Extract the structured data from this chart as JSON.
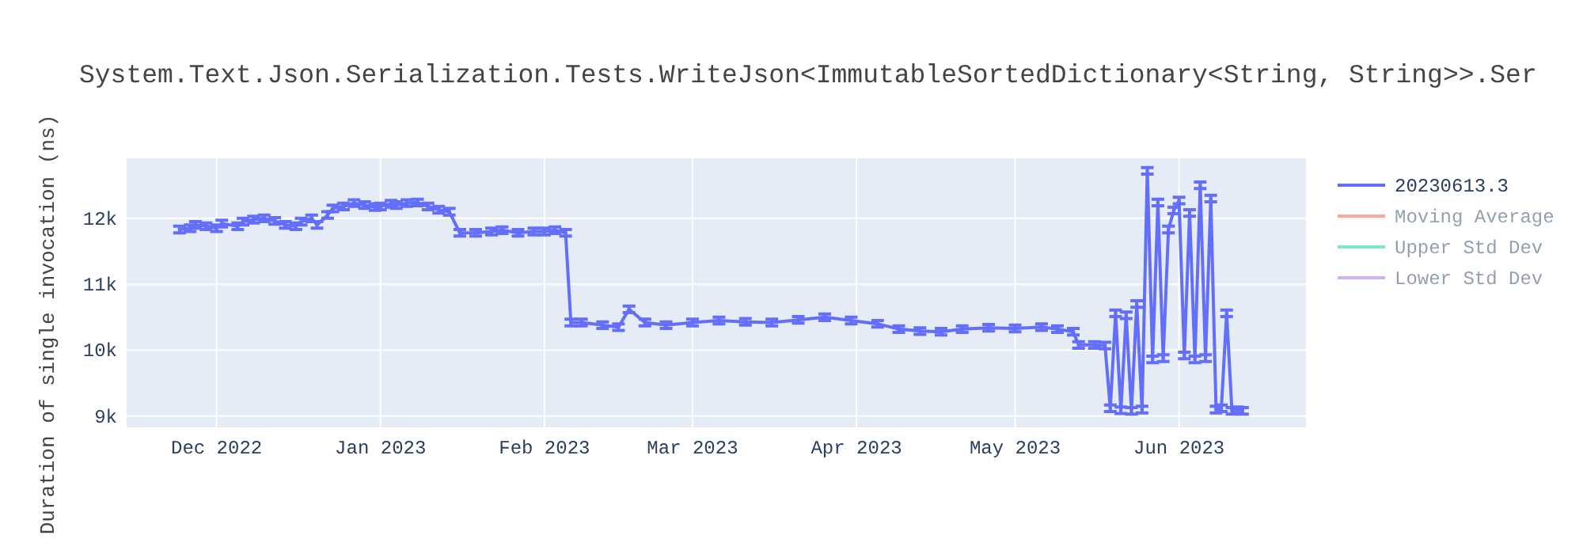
{
  "chart_data": {
    "type": "line",
    "title": "System.Text.Json.Serialization.Tests.WriteJson<ImmutableSortedDictionary<String, String>>.Ser",
    "ylabel": "Duration of single invocation (ns)",
    "xlim": [
      "2022-11-14",
      "2023-06-25"
    ],
    "xticks": [
      {
        "value": "2022-12-01",
        "label": "Dec 2022"
      },
      {
        "value": "2023-01-01",
        "label": "Jan 2023"
      },
      {
        "value": "2023-02-01",
        "label": "Feb 2023"
      },
      {
        "value": "2023-03-01",
        "label": "Mar 2023"
      },
      {
        "value": "2023-04-01",
        "label": "Apr 2023"
      },
      {
        "value": "2023-05-01",
        "label": "May 2023"
      },
      {
        "value": "2023-06-01",
        "label": "Jun 2023"
      }
    ],
    "ylim": [
      8830,
      12910
    ],
    "yticks": [
      {
        "value": 9000,
        "label": "9k"
      },
      {
        "value": 10000,
        "label": "10k"
      },
      {
        "value": 11000,
        "label": "11k"
      },
      {
        "value": 12000,
        "label": "12k"
      }
    ],
    "grid": true,
    "legend": "right",
    "series": [
      {
        "name": "20230613.3",
        "color": "#636efa",
        "x": [
          "2022-11-24",
          "2022-11-26",
          "2022-11-27",
          "2022-11-29",
          "2022-12-01",
          "2022-12-02",
          "2022-12-05",
          "2022-12-06",
          "2022-12-08",
          "2022-12-10",
          "2022-12-12",
          "2022-12-14",
          "2022-12-16",
          "2022-12-17",
          "2022-12-19",
          "2022-12-20",
          "2022-12-22",
          "2022-12-23",
          "2022-12-25",
          "2022-12-27",
          "2022-12-29",
          "2022-12-31",
          "2023-01-01",
          "2023-01-03",
          "2023-01-04",
          "2023-01-06",
          "2023-01-08",
          "2023-01-10",
          "2023-01-12",
          "2023-01-14",
          "2023-01-16",
          "2023-01-19",
          "2023-01-22",
          "2023-01-24",
          "2023-01-27",
          "2023-01-30",
          "2023-02-01",
          "2023-02-03",
          "2023-02-05",
          "2023-02-06",
          "2023-02-08",
          "2023-02-12",
          "2023-02-15",
          "2023-02-17",
          "2023-02-20",
          "2023-02-24",
          "2023-03-01",
          "2023-03-06",
          "2023-03-11",
          "2023-03-16",
          "2023-03-21",
          "2023-03-26",
          "2023-03-31",
          "2023-04-05",
          "2023-04-09",
          "2023-04-13",
          "2023-04-17",
          "2023-04-21",
          "2023-04-26",
          "2023-05-01",
          "2023-05-06",
          "2023-05-09",
          "2023-05-12",
          "2023-05-13",
          "2023-05-16",
          "2023-05-18",
          "2023-05-19",
          "2023-05-20",
          "2023-05-21",
          "2023-05-22",
          "2023-05-23",
          "2023-05-24",
          "2023-05-25",
          "2023-05-26",
          "2023-05-27",
          "2023-05-28",
          "2023-05-29",
          "2023-05-30",
          "2023-05-31",
          "2023-06-01",
          "2023-06-02",
          "2023-06-03",
          "2023-06-04",
          "2023-06-05",
          "2023-06-06",
          "2023-06-07",
          "2023-06-08",
          "2023-06-09",
          "2023-06-10",
          "2023-06-11",
          "2023-06-12",
          "2023-06-13"
        ],
        "values": [
          11830,
          11850,
          11900,
          11880,
          11850,
          11920,
          11880,
          11950,
          11980,
          12000,
          11960,
          11900,
          11880,
          11950,
          12000,
          11900,
          12050,
          12150,
          12180,
          12230,
          12200,
          12170,
          12180,
          12220,
          12200,
          12230,
          12240,
          12180,
          12130,
          12100,
          11780,
          11780,
          11800,
          11820,
          11780,
          11800,
          11800,
          11820,
          11780,
          10420,
          10420,
          10380,
          10350,
          10620,
          10420,
          10380,
          10420,
          10450,
          10430,
          10420,
          10460,
          10500,
          10450,
          10400,
          10320,
          10290,
          10280,
          10320,
          10340,
          10330,
          10350,
          10320,
          10280,
          10080,
          10080,
          10070,
          9120,
          10560,
          9090,
          10530,
          9080,
          10700,
          9100,
          12720,
          9860,
          12240,
          9880,
          11830,
          12120,
          12270,
          9920,
          12080,
          9860,
          12500,
          9880,
          12300,
          9100,
          9120,
          10560,
          9080,
          9090,
          9080
        ],
        "errors": [
          50,
          50,
          50,
          50,
          50,
          50,
          50,
          50,
          50,
          50,
          50,
          50,
          50,
          50,
          50,
          50,
          50,
          50,
          50,
          50,
          50,
          50,
          50,
          50,
          50,
          50,
          50,
          50,
          50,
          50,
          50,
          50,
          50,
          50,
          50,
          50,
          50,
          50,
          50,
          50,
          50,
          50,
          50,
          50,
          50,
          50,
          50,
          50,
          50,
          50,
          50,
          50,
          50,
          50,
          50,
          50,
          50,
          50,
          50,
          50,
          50,
          50,
          50,
          50,
          50,
          50,
          50,
          50,
          50,
          50,
          50,
          50,
          50,
          50,
          50,
          50,
          50,
          50,
          50,
          50,
          50,
          50,
          50,
          50,
          50,
          50,
          50,
          50,
          50,
          50,
          50,
          50
        ]
      },
      {
        "name": "Moving Average",
        "color": "#ef553b"
      },
      {
        "name": "Upper Std Dev",
        "color": "#00cc96"
      },
      {
        "name": "Lower Std Dev",
        "color": "#ab63fa"
      }
    ]
  }
}
